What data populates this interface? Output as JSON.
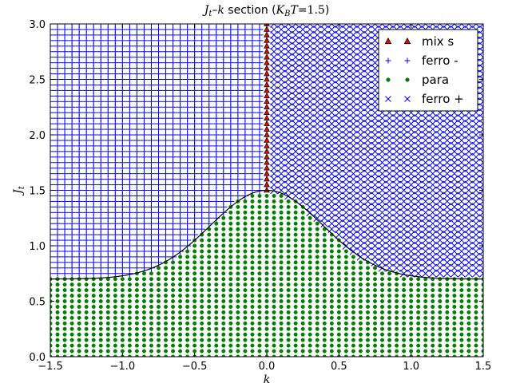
{
  "chart_data": {
    "type": "scatter",
    "title": "Jt–k section (KBT=1.5)",
    "title_parts": {
      "var": "J",
      "var_sub": "t",
      "dash": "–",
      "var2": "k",
      "word": " section (",
      "cond_var": "K",
      "cond_sub": "B",
      "cond_var2": "T",
      "cond_eq": "=1.5",
      "close": ")"
    },
    "xlabel": "k",
    "ylabel_main": "J",
    "ylabel_sub": "t",
    "xlim": [
      -1.5,
      1.5
    ],
    "ylim": [
      0.0,
      3.0
    ],
    "x_ticks": [
      -1.5,
      -1.0,
      -0.5,
      0.0,
      0.5,
      1.0,
      1.5
    ],
    "x_tick_labels": [
      "−1.5",
      "−1.0",
      "−0.5",
      "0.0",
      "0.5",
      "1.0",
      "1.5"
    ],
    "y_ticks": [
      0.0,
      0.5,
      1.0,
      1.5,
      2.0,
      2.5,
      3.0
    ],
    "y_tick_labels": [
      "0.0",
      "0.5",
      "1.0",
      "1.5",
      "2.0",
      "2.5",
      "3.0"
    ],
    "grid": false,
    "legend_position": "top-right",
    "grid_step": 0.05,
    "boundary": {
      "description": "Jc(k) = 0.70 + 0.80 * exp(-(k/0.55)^2)",
      "k": [
        -1.5,
        -1.25,
        -1.0,
        -0.75,
        -0.5,
        -0.25,
        0.0,
        0.25,
        0.5,
        0.75,
        1.0,
        1.25,
        1.5
      ],
      "Jt": [
        0.7,
        0.7,
        0.74,
        0.83,
        1.05,
        1.34,
        1.5,
        1.34,
        1.05,
        0.83,
        0.74,
        0.7,
        0.7
      ],
      "peak": 1.5,
      "base": 0.7,
      "width": 0.55
    },
    "series": [
      {
        "name": "mix s",
        "marker": "triangle",
        "color": "#ff0000",
        "edge_color": "#000000",
        "region": "k = 0, Jt from boundary peak 1.5 to 3.0"
      },
      {
        "name": "ferro -",
        "marker": "plus",
        "color": "#0000ff",
        "region": "k < 0, Jt above boundary"
      },
      {
        "name": "para",
        "marker": "circle",
        "color": "#008000",
        "region": "Jt below boundary"
      },
      {
        "name": "ferro +",
        "marker": "cross",
        "color": "#0000ff",
        "region": "k > 0, Jt above boundary"
      }
    ]
  }
}
